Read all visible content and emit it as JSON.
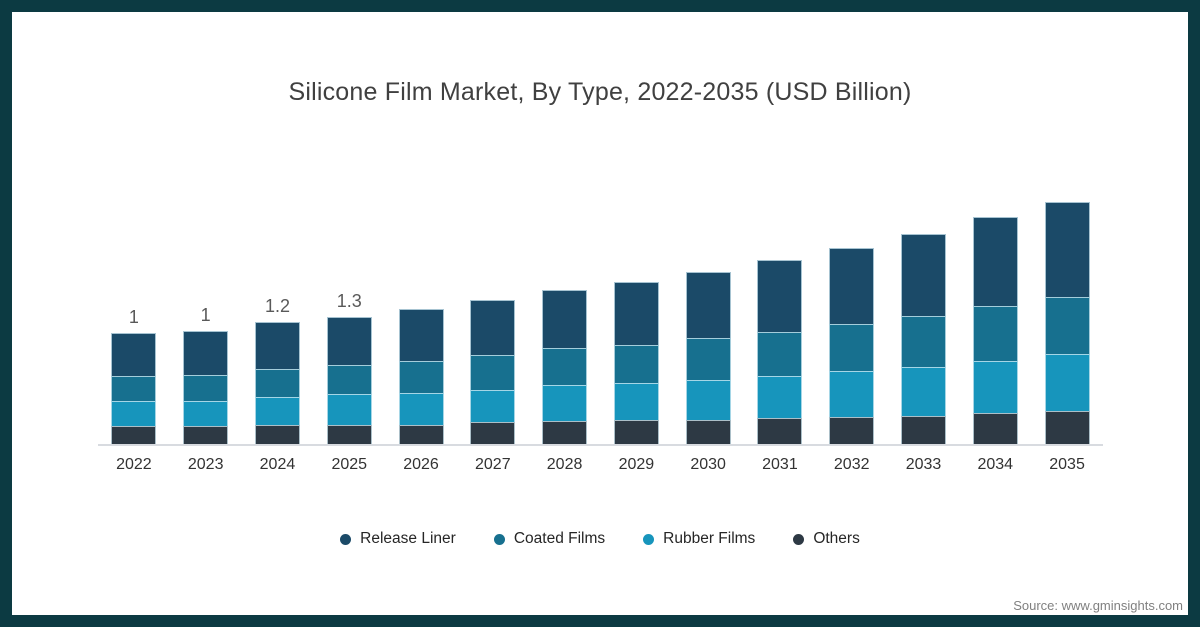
{
  "frame": {
    "border_color": "#0c3a42",
    "background": "#ffffff"
  },
  "source": "Source: www.gminsights.com",
  "chart_data": {
    "type": "bar",
    "stacked": true,
    "title": "Silicone Film Market, By Type, 2022-2035 (USD Billion)",
    "unit": "USD Billion",
    "categories": [
      "2022",
      "2023",
      "2024",
      "2025",
      "2026",
      "2027",
      "2028",
      "2029",
      "2030",
      "2031",
      "2032",
      "2033",
      "2034",
      "2035"
    ],
    "bar_value_labels": [
      "1",
      "1",
      "1.2",
      "1.3",
      "",
      "",
      "",
      "",
      "",
      "",
      "",
      "",
      "",
      ""
    ],
    "series_bottom_to_top": [
      {
        "name": "Others",
        "color": "#2d3944",
        "values": [
          0.18,
          0.18,
          0.19,
          0.19,
          0.19,
          0.22,
          0.23,
          0.24,
          0.24,
          0.26,
          0.27,
          0.28,
          0.31,
          0.33
        ]
      },
      {
        "name": "Rubber Films",
        "color": "#1795bc",
        "values": [
          0.25,
          0.25,
          0.28,
          0.31,
          0.32,
          0.32,
          0.36,
          0.37,
          0.4,
          0.42,
          0.46,
          0.49,
          0.52,
          0.57
        ]
      },
      {
        "name": "Coated Films",
        "color": "#17708f",
        "values": [
          0.25,
          0.26,
          0.28,
          0.29,
          0.32,
          0.35,
          0.37,
          0.38,
          0.42,
          0.44,
          0.47,
          0.51,
          0.55,
          0.57
        ]
      },
      {
        "name": "Release Liner",
        "color": "#1b4a68",
        "values": [
          0.43,
          0.44,
          0.47,
          0.48,
          0.52,
          0.55,
          0.58,
          0.63,
          0.66,
          0.72,
          0.76,
          0.82,
          0.89,
          0.95
        ]
      }
    ],
    "totals": [
      1.11,
      1.13,
      1.22,
      1.27,
      1.35,
      1.44,
      1.54,
      1.62,
      1.72,
      1.84,
      1.96,
      2.1,
      2.27,
      2.42
    ],
    "legend": [
      {
        "label": "Release Liner",
        "color": "#1b4a68"
      },
      {
        "label": "Coated Films",
        "color": "#17708f"
      },
      {
        "label": "Rubber Films",
        "color": "#1795bc"
      },
      {
        "label": "Others",
        "color": "#2d3944"
      }
    ],
    "legend_position": "bottom",
    "gridlines": false,
    "y_axis": "hidden",
    "x_axis_line": true,
    "ylim": [
      0,
      2.6
    ]
  },
  "style": {
    "axis_line_color": "#d8dbe0",
    "title_color": "#404040",
    "value_label_color": "#595959",
    "tick_label_color": "#333333",
    "source_color": "#808080"
  }
}
